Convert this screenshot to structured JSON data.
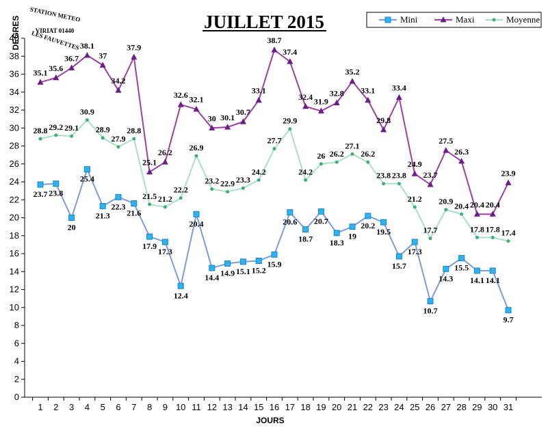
{
  "chart_data": {
    "type": "line",
    "title": "JUILLET 2015",
    "xlabel": "JOURS",
    "ylabel": "DEGRES",
    "ylim": [
      0,
      40
    ],
    "ytick_step": 2,
    "grid": false,
    "legend_position": "top-right",
    "logo_text": {
      "top": "STATION METEO",
      "middle": "VIRIAT 01440",
      "bottom": "LES FAUVETTES"
    },
    "categories": [
      "1",
      "2",
      "3",
      "4",
      "5",
      "6",
      "7",
      "8",
      "9",
      "10",
      "11",
      "12",
      "13",
      "14",
      "15",
      "16",
      "17",
      "18",
      "19",
      "20",
      "21",
      "22",
      "23",
      "24",
      "25",
      "26",
      "27",
      "28",
      "29",
      "30",
      "31"
    ],
    "series": [
      {
        "name": "Mini",
        "color": "#7b9bdb",
        "marker": "square",
        "marker_color": "#2eb3f0",
        "values": [
          23.7,
          23.8,
          20,
          25.4,
          21.3,
          22.3,
          21.6,
          17.9,
          17.3,
          12.4,
          20.4,
          14.4,
          14.9,
          15.1,
          15.2,
          15.9,
          20.6,
          18.7,
          20.7,
          18.3,
          19,
          20.2,
          19.5,
          15.7,
          17.3,
          10.7,
          14.3,
          15.5,
          14.1,
          14.1,
          9.7
        ]
      },
      {
        "name": "Maxi",
        "color": "#9b3fa0",
        "marker": "triangle",
        "marker_color": "#6a1f86",
        "values": [
          35.1,
          35.6,
          36.7,
          38.1,
          37,
          34.2,
          37.9,
          25.1,
          26.2,
          32.6,
          32.1,
          30,
          30.1,
          30.7,
          33.1,
          38.7,
          37.4,
          32.4,
          31.9,
          32.8,
          35.2,
          33.1,
          29.8,
          33.4,
          24.9,
          23.7,
          27.5,
          26.3,
          20.4,
          20.4,
          23.9
        ]
      },
      {
        "name": "Moyenne",
        "color": "#a9dfc2",
        "marker": "dot",
        "marker_color": "#3fae76",
        "values": [
          28.8,
          29.2,
          29.1,
          30.9,
          28.9,
          27.9,
          28.8,
          21.5,
          21.2,
          22.2,
          26.9,
          23.2,
          22.9,
          23.3,
          24.2,
          27.7,
          29.9,
          24.2,
          26,
          26.2,
          27.1,
          26.2,
          23.8,
          23.8,
          21.2,
          17.7,
          20.9,
          20.4,
          17.8,
          17.8,
          17.4
        ]
      }
    ]
  }
}
